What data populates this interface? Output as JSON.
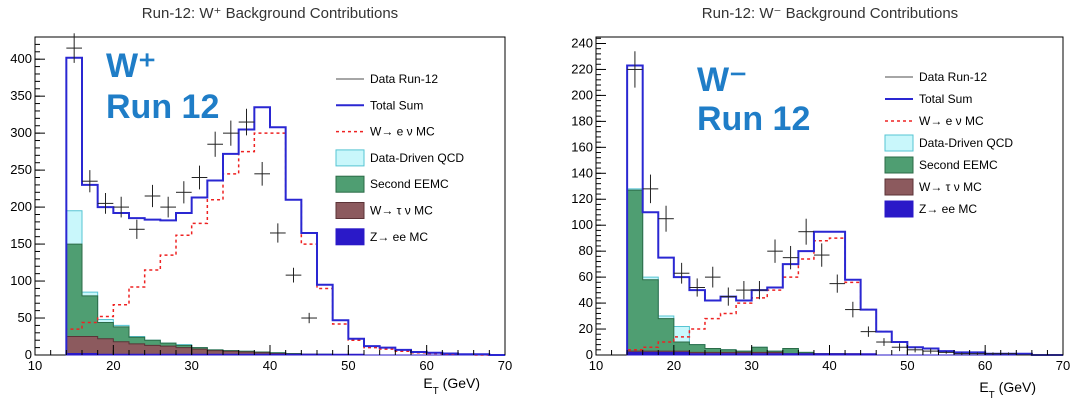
{
  "colors": {
    "data": "#222222",
    "total_sum": "#2a27d2",
    "w_enu_mc": "#ee2222",
    "data_driven_qcd_fill": "#c9f7fb",
    "data_driven_qcd_line": "#56c4d3",
    "second_eemc_fill": "#4f9e72",
    "second_eemc_line": "#2b6b47",
    "w_taunu_mc_fill": "#8c5a5e",
    "w_taunu_mc_line": "#5b3337",
    "z_ee_mc_fill": "#2a19c8",
    "title_badge": "#1f7dc7"
  },
  "chart_data": [
    {
      "type": "histogram",
      "title": "Run-12: W⁺ Background Contributions",
      "annotation_line1": "W⁺",
      "annotation_line2": "Run 12",
      "xlabel": "E_T (GeV)",
      "ylabel": "",
      "xlim": [
        10,
        70
      ],
      "ylim": [
        0,
        430
      ],
      "xticks": [
        10,
        20,
        30,
        40,
        50,
        60,
        70
      ],
      "yticks": [
        0,
        50,
        100,
        150,
        200,
        250,
        300,
        350,
        400
      ],
      "legend_position": "top-right",
      "grid": false,
      "bin_edges": [
        14,
        16,
        18,
        20,
        22,
        24,
        26,
        28,
        30,
        32,
        34,
        36,
        38,
        40,
        42,
        44,
        46,
        48,
        50,
        52,
        54,
        56,
        58,
        60,
        62,
        64,
        66,
        68,
        70
      ],
      "series": [
        {
          "key": "total_sum",
          "name": "Total Sum",
          "values": [
            402,
            230,
            200,
            192,
            185,
            183,
            182,
            192,
            213,
            236,
            272,
            305,
            335,
            308,
            210,
            165,
            95,
            47,
            22,
            12,
            10,
            7,
            4,
            3,
            2,
            1,
            1,
            0
          ]
        },
        {
          "key": "w_enu_mc",
          "name": "W→ e ν MC",
          "values": [
            35,
            44,
            52,
            68,
            92,
            115,
            135,
            162,
            178,
            210,
            245,
            275,
            300,
            300,
            210,
            150,
            90,
            42,
            20,
            10,
            8,
            5,
            3,
            2,
            1,
            1,
            0,
            0
          ]
        },
        {
          "key": "data_driven_qcd",
          "name": "Data-Driven QCD",
          "values": [
            195,
            85,
            48,
            40,
            25,
            20,
            16,
            14,
            10,
            7,
            6,
            5,
            4,
            3,
            2,
            1,
            1,
            0,
            0,
            0,
            0,
            0,
            0,
            0,
            0,
            0,
            0,
            0
          ]
        },
        {
          "key": "second_eemc",
          "name": "Second EEMC",
          "values": [
            150,
            80,
            44,
            38,
            24,
            20,
            16,
            13,
            10,
            7,
            6,
            5,
            4,
            3,
            2,
            1,
            1,
            0,
            0,
            0,
            0,
            0,
            0,
            0,
            0,
            0,
            0,
            0
          ]
        },
        {
          "key": "w_taunu_mc",
          "name": "W→ τ ν MC",
          "values": [
            25,
            25,
            22,
            18,
            15,
            13,
            12,
            10,
            8,
            6,
            5,
            4,
            3,
            2,
            1,
            1,
            0,
            0,
            0,
            0,
            0,
            0,
            0,
            0,
            0,
            0,
            0,
            0
          ]
        },
        {
          "key": "z_ee_mc",
          "name": "Z→ ee MC",
          "values": [
            2,
            2,
            1,
            1,
            1,
            1,
            1,
            1,
            1,
            1,
            1,
            1,
            1,
            1,
            1,
            1,
            1,
            1,
            1,
            0,
            0,
            0,
            0,
            0,
            0,
            0,
            0,
            0
          ]
        }
      ],
      "data_points": {
        "name": "Data Run-12",
        "x": [
          15,
          17,
          19,
          21,
          23,
          25,
          27,
          29,
          31,
          33,
          35,
          37,
          39,
          41,
          43,
          45
        ],
        "y": [
          415,
          235,
          205,
          200,
          170,
          215,
          200,
          220,
          240,
          285,
          300,
          315,
          245,
          165,
          108,
          50
        ],
        "yerr": [
          20,
          15,
          14,
          14,
          13,
          15,
          14,
          15,
          16,
          17,
          17,
          18,
          16,
          13,
          10,
          7
        ]
      }
    },
    {
      "type": "histogram",
      "title": "Run-12: W⁻ Background Contributions",
      "annotation_line1": "W⁻",
      "annotation_line2": "Run 12",
      "xlabel": "E_T (GeV)",
      "ylabel": "",
      "xlim": [
        10,
        70
      ],
      "ylim": [
        0,
        245
      ],
      "xticks": [
        10,
        20,
        30,
        40,
        50,
        60,
        70
      ],
      "yticks": [
        0,
        20,
        40,
        60,
        80,
        100,
        120,
        140,
        160,
        180,
        200,
        220,
        240
      ],
      "legend_position": "top-right",
      "grid": false,
      "bin_edges": [
        14,
        16,
        18,
        20,
        22,
        24,
        26,
        28,
        30,
        32,
        34,
        36,
        38,
        40,
        42,
        44,
        46,
        48,
        50,
        52,
        54,
        56,
        58,
        60,
        62,
        64,
        66,
        68,
        70
      ],
      "series": [
        {
          "key": "total_sum",
          "name": "Total Sum",
          "values": [
            223,
            110,
            75,
            60,
            50,
            42,
            45,
            42,
            50,
            52,
            70,
            80,
            95,
            95,
            58,
            35,
            18,
            10,
            6,
            5,
            3,
            2,
            2,
            1,
            1,
            1,
            0,
            0
          ]
        },
        {
          "key": "w_enu_mc",
          "name": "W→ e ν MC",
          "values": [
            4,
            6,
            10,
            14,
            20,
            28,
            32,
            40,
            44,
            50,
            60,
            74,
            88,
            90,
            56,
            35,
            18,
            10,
            6,
            5,
            3,
            2,
            2,
            1,
            1,
            1,
            0,
            0
          ]
        },
        {
          "key": "data_driven_qcd",
          "name": "Data-Driven QCD",
          "values": [
            128,
            60,
            30,
            22,
            8,
            5,
            4,
            3,
            6,
            3,
            5,
            2,
            1,
            1,
            0,
            0,
            0,
            0,
            0,
            0,
            0,
            0,
            0,
            0,
            0,
            0,
            0,
            0
          ]
        },
        {
          "key": "second_eemc",
          "name": "Second EEMC",
          "values": [
            127,
            58,
            28,
            10,
            8,
            5,
            4,
            3,
            6,
            3,
            5,
            2,
            1,
            1,
            0,
            0,
            0,
            0,
            0,
            0,
            0,
            0,
            0,
            0,
            0,
            0,
            0,
            0
          ]
        },
        {
          "key": "w_taunu_mc",
          "name": "W→ τ ν MC",
          "values": [
            3,
            3,
            3,
            3,
            2,
            2,
            2,
            2,
            2,
            2,
            1,
            1,
            1,
            1,
            1,
            0,
            0,
            0,
            0,
            0,
            0,
            0,
            0,
            0,
            0,
            0,
            0,
            0
          ]
        },
        {
          "key": "z_ee_mc",
          "name": "Z→ ee MC",
          "values": [
            2,
            2,
            2,
            2,
            1,
            1,
            1,
            1,
            1,
            1,
            1,
            1,
            1,
            1,
            1,
            1,
            0,
            0,
            0,
            0,
            0,
            0,
            0,
            0,
            0,
            0,
            0,
            0
          ]
        }
      ],
      "data_points": {
        "name": "Data Run-12",
        "x": [
          15,
          17,
          19,
          21,
          23,
          25,
          27,
          29,
          31,
          33,
          35,
          37,
          39,
          41,
          43,
          45,
          47,
          49,
          51,
          53,
          55,
          57,
          59,
          61,
          63,
          65,
          67,
          69
        ],
        "y": [
          220,
          128,
          105,
          63,
          52,
          60,
          45,
          50,
          50,
          80,
          75,
          95,
          77,
          55,
          35,
          18,
          10,
          6,
          4,
          3,
          2,
          1,
          1,
          1,
          1,
          0,
          0,
          0
        ],
        "yerr": [
          14,
          11,
          10,
          8,
          7,
          8,
          7,
          7,
          7,
          9,
          9,
          10,
          9,
          7,
          6,
          4,
          3,
          3,
          2,
          2,
          1,
          1,
          1,
          1,
          1,
          0,
          0,
          0
        ]
      }
    }
  ]
}
